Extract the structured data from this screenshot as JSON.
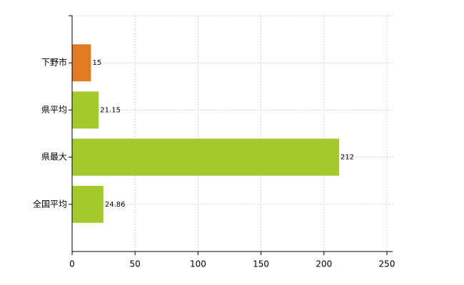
{
  "chart_data": {
    "type": "barh",
    "categories": [
      "下野市",
      "県平均",
      "県最大",
      "全国平均"
    ],
    "values": [
      15,
      21.15,
      212,
      24.86
    ],
    "colors": [
      "#e07b22",
      "#a4c92b",
      "#a4c92b",
      "#a4c92b"
    ],
    "xlim": [
      0,
      250
    ],
    "xticks": [
      0,
      50,
      100,
      150,
      200,
      250
    ],
    "grid": true
  }
}
